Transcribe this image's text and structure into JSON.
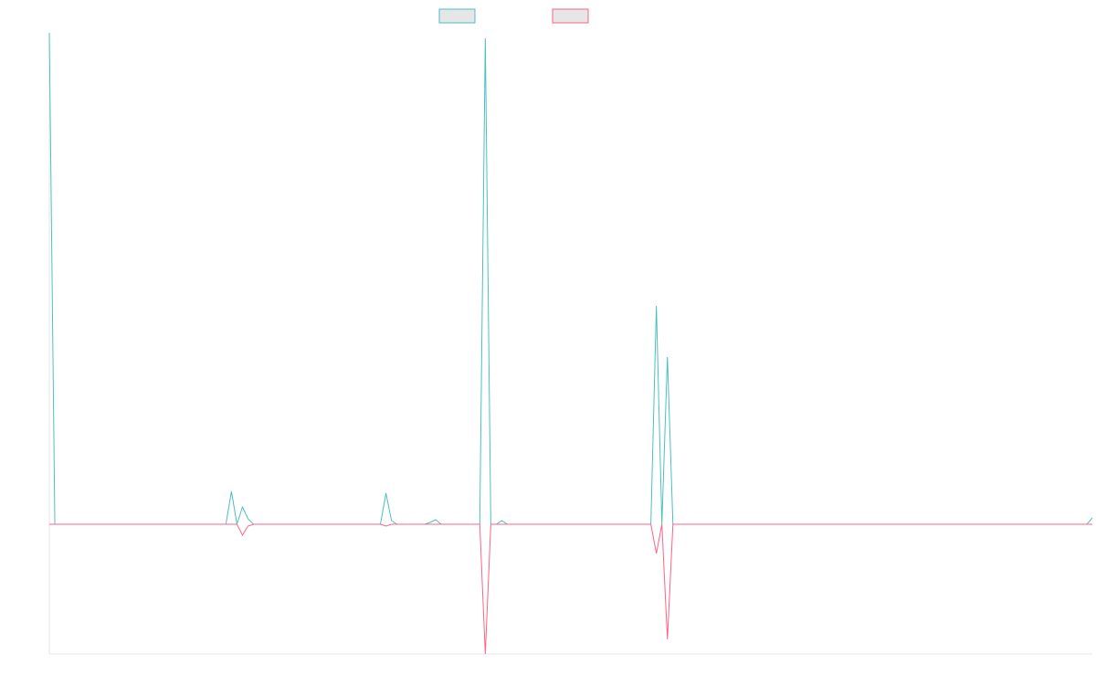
{
  "chart_data": {
    "type": "line",
    "title": "",
    "xlabel": "",
    "ylabel": "",
    "x": [
      0,
      1,
      2,
      3,
      4,
      5,
      6,
      7,
      8,
      9,
      10,
      11,
      12,
      13,
      14,
      15,
      16,
      17,
      18,
      19,
      20,
      21,
      22,
      23,
      24,
      25,
      26,
      27,
      28,
      29,
      30,
      31,
      32,
      33,
      34,
      35,
      36,
      37,
      38,
      39,
      40,
      41,
      42,
      43,
      44,
      45,
      46,
      47,
      48,
      49,
      50,
      51,
      52,
      53,
      54,
      55,
      56,
      57,
      58,
      59,
      60,
      61,
      62,
      63,
      64,
      65,
      66,
      67,
      68,
      69,
      70,
      71,
      72,
      73,
      74,
      75,
      76,
      77,
      78,
      79,
      80,
      81,
      82,
      83,
      84,
      85,
      86,
      87,
      88,
      89,
      90,
      91,
      92,
      93,
      94,
      95,
      96,
      97,
      98,
      99,
      100,
      101,
      102,
      103,
      104,
      105,
      106,
      107,
      108,
      109,
      110,
      111,
      112,
      113,
      114,
      115,
      116,
      117,
      118,
      119,
      120,
      121,
      122,
      123,
      124,
      125,
      126,
      127,
      128,
      129,
      130,
      131,
      132,
      133,
      134,
      135,
      136,
      137,
      138,
      139,
      140,
      141,
      142,
      143,
      144,
      145,
      146,
      147,
      148,
      149,
      150,
      151,
      152,
      153,
      154,
      155,
      156,
      157,
      158,
      159,
      160,
      161,
      162,
      163,
      164,
      165,
      166,
      167,
      168,
      169,
      170,
      171,
      172,
      173,
      174,
      175,
      176,
      177,
      178,
      179,
      180,
      181,
      182,
      183,
      184,
      185,
      186,
      187,
      188,
      189
    ],
    "ylim": [
      -142,
      538
    ],
    "xlim": [
      0,
      189
    ],
    "grid": false,
    "legend_position": "top-center",
    "series": [
      {
        "color": "#4bc0c0",
        "fill": "#e6e6e6",
        "values": [
          538,
          0,
          0,
          0,
          0,
          0,
          0,
          0,
          0,
          0,
          0,
          0,
          0,
          0,
          0,
          0,
          0,
          0,
          0,
          0,
          0,
          0,
          0,
          0,
          0,
          0,
          0,
          0,
          0,
          0,
          0,
          0,
          0,
          36,
          0,
          19,
          6,
          0,
          0,
          0,
          0,
          0,
          0,
          0,
          0,
          0,
          0,
          0,
          0,
          0,
          0,
          0,
          0,
          0,
          0,
          0,
          0,
          0,
          0,
          0,
          0,
          34,
          4,
          0,
          0,
          0,
          0,
          0,
          0,
          2,
          5,
          0,
          0,
          0,
          0,
          0,
          0,
          0,
          0,
          532,
          0,
          0,
          4,
          0,
          0,
          0,
          0,
          0,
          0,
          0,
          0,
          0,
          0,
          0,
          0,
          0,
          0,
          0,
          0,
          0,
          0,
          0,
          0,
          0,
          0,
          0,
          0,
          0,
          0,
          0,
          239,
          0,
          183,
          0,
          0,
          0,
          0,
          0,
          0,
          0,
          0,
          0,
          0,
          0,
          0,
          0,
          0,
          0,
          0,
          0,
          0,
          0,
          0,
          0,
          0,
          0,
          0,
          0,
          0,
          0,
          0,
          0,
          0,
          0,
          0,
          0,
          0,
          0,
          0,
          0,
          0,
          0,
          0,
          0,
          0,
          0,
          0,
          0,
          0,
          0,
          0,
          0,
          0,
          0,
          0,
          0,
          0,
          0,
          0,
          0,
          0,
          0,
          0,
          0,
          0,
          0,
          0,
          0,
          0,
          0,
          0,
          0,
          0,
          0,
          0,
          0,
          0,
          0,
          0,
          7
        ]
      },
      {
        "color": "#ff6384",
        "fill": "#e6e6e6",
        "values": [
          0,
          0,
          0,
          0,
          0,
          0,
          0,
          0,
          0,
          0,
          0,
          0,
          0,
          0,
          0,
          0,
          0,
          0,
          0,
          0,
          0,
          0,
          0,
          0,
          0,
          0,
          0,
          0,
          0,
          0,
          0,
          0,
          0,
          0,
          0,
          -12,
          -2,
          0,
          0,
          0,
          0,
          0,
          0,
          0,
          0,
          0,
          0,
          0,
          0,
          0,
          0,
          0,
          0,
          0,
          0,
          0,
          0,
          0,
          0,
          0,
          0,
          -2,
          0,
          0,
          0,
          0,
          0,
          0,
          0,
          0,
          0,
          0,
          0,
          0,
          0,
          0,
          0,
          0,
          0,
          -142,
          0,
          0,
          0,
          0,
          0,
          0,
          0,
          0,
          0,
          0,
          0,
          0,
          0,
          0,
          0,
          0,
          0,
          0,
          0,
          0,
          0,
          0,
          0,
          0,
          0,
          0,
          0,
          0,
          0,
          0,
          -32,
          0,
          -126,
          0,
          0,
          0,
          0,
          0,
          0,
          0,
          0,
          0,
          0,
          0,
          0,
          0,
          0,
          0,
          0,
          0,
          0,
          0,
          0,
          0,
          0,
          0,
          0,
          0,
          0,
          0,
          0,
          0,
          0,
          0,
          0,
          0,
          0,
          0,
          0,
          0,
          0,
          0,
          0,
          0,
          0,
          0,
          0,
          0,
          0,
          0,
          0,
          0,
          0,
          0,
          0,
          0,
          0,
          0,
          0,
          0,
          0,
          0,
          0,
          0,
          0,
          0,
          0,
          0,
          0,
          0,
          0,
          0,
          0,
          0,
          0,
          0,
          0,
          0,
          0,
          0
        ]
      }
    ]
  }
}
